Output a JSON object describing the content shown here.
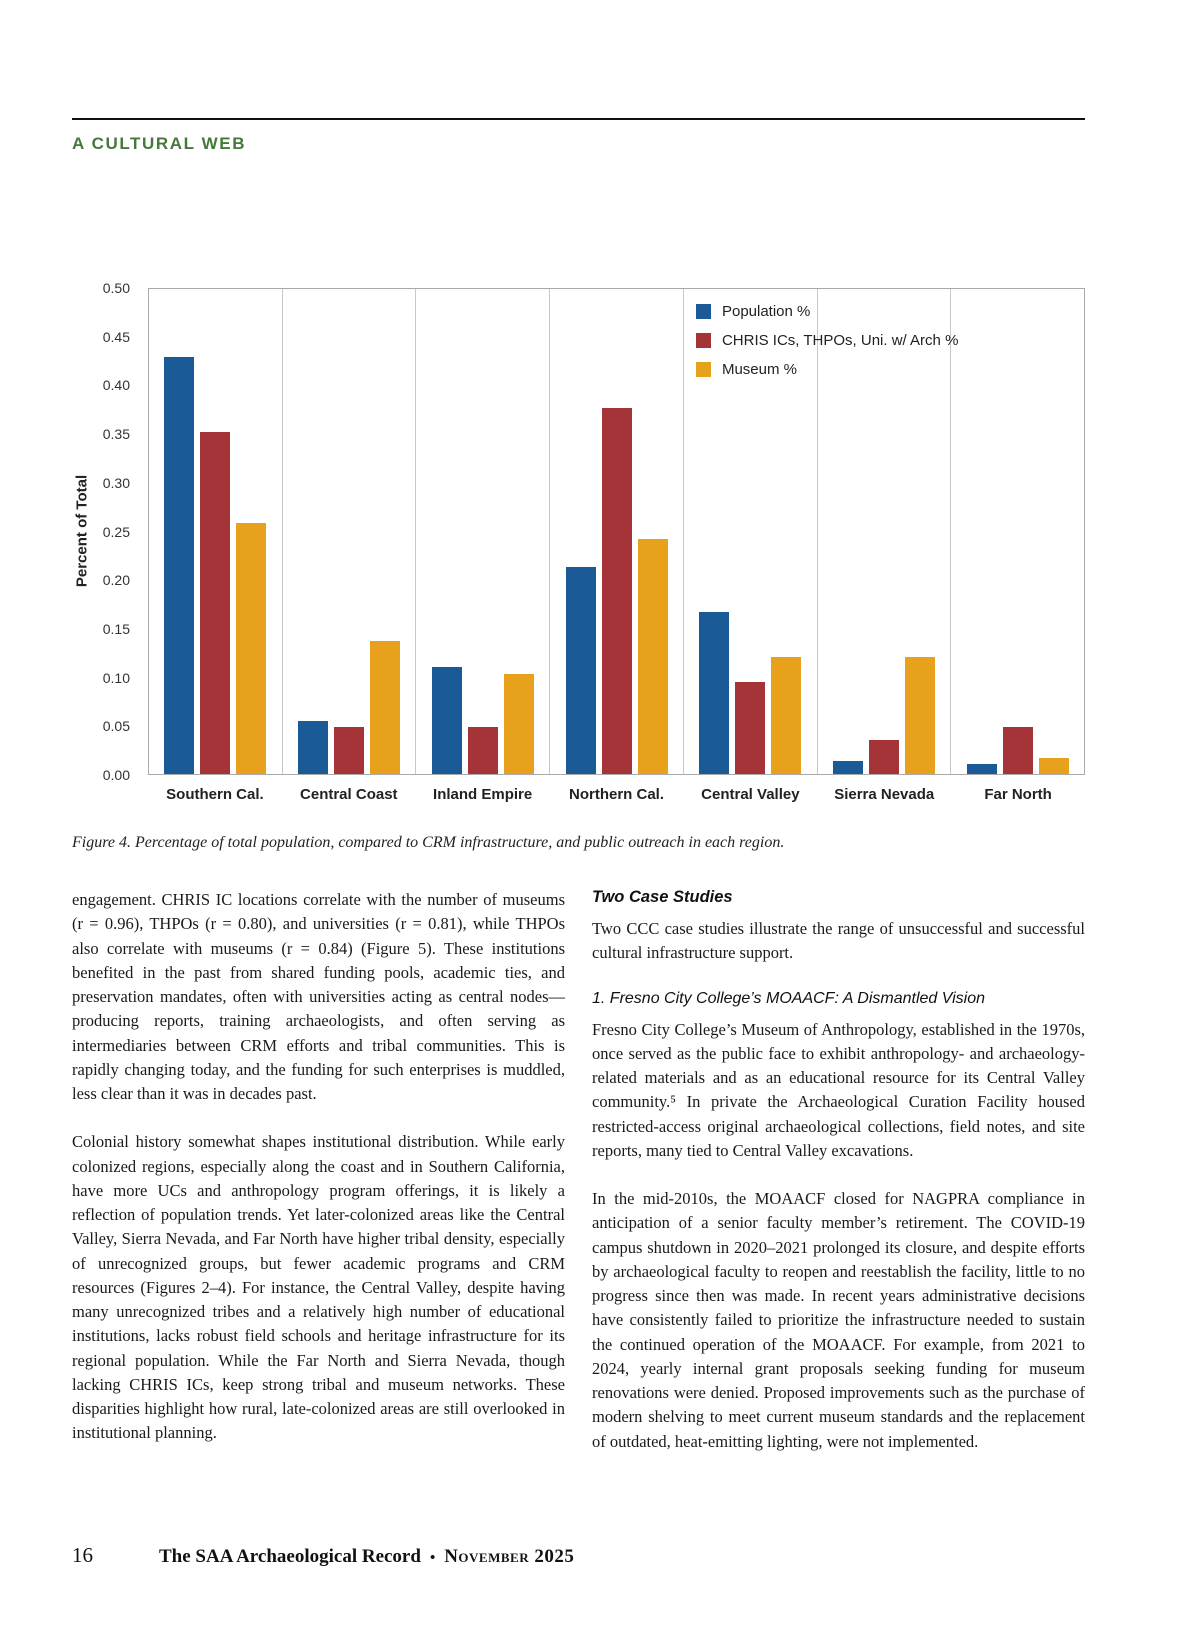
{
  "page": {
    "section_header": "A CULTURAL WEB",
    "colors": {
      "section_header": "#45793C",
      "body_text": "#1a1a1a"
    },
    "footer": {
      "page_number": "16",
      "journal": "The SAA Archaeological Record",
      "separator": "•",
      "issue": "November 2025"
    }
  },
  "figure": {
    "caption": "Figure 4. Percentage of total population, compared to CRM infrastructure, and public outreach in each region."
  },
  "chart_data": {
    "type": "bar",
    "title": "",
    "xlabel": "",
    "ylabel": "Percent of Total",
    "ylim": [
      0,
      0.5
    ],
    "ytick_step": 0.05,
    "grid": "vertical-separators",
    "legend_position": "top-right",
    "categories": [
      "Southern Cal.",
      "Central Coast",
      "Inland Empire",
      "Northern Cal.",
      "Central Valley",
      "Sierra Nevada",
      "Far North"
    ],
    "series": [
      {
        "name": "Population %",
        "color": "#1A5A96",
        "values": [
          0.43,
          0.055,
          0.11,
          0.213,
          0.167,
          0.013,
          0.01
        ]
      },
      {
        "name": "CHRIS ICs, THPOs, Uni. w/ Arch %",
        "color": "#A53438",
        "values": [
          0.353,
          0.048,
          0.048,
          0.377,
          0.095,
          0.035,
          0.048
        ]
      },
      {
        "name": "Museum %",
        "color": "#E8A11D",
        "values": [
          0.259,
          0.137,
          0.103,
          0.242,
          0.121,
          0.121,
          0.017
        ]
      }
    ]
  },
  "article": {
    "left": {
      "paragraphs": [
        "engagement. CHRIS IC locations correlate with the number of museums (r = 0.96), THPOs (r = 0.80), and universities (r = 0.81), while THPOs also correlate with museums (r = 0.84) (Figure 5). These institutions benefited in the past from shared funding pools, academic ties, and preservation mandates, often with universities acting as central nodes—producing reports, training archaeologists, and often serving as intermediaries between CRM efforts and tribal communities. This is rapidly changing today, and the funding for such enterprises is muddled, less clear than it was in decades past.",
        "Colonial history somewhat shapes institutional distribution. While early colonized regions, especially along the coast and in Southern California, have more UCs and anthropology program offerings, it is likely a reflection of population trends. Yet later-colonized areas like the Central Valley, Sierra Nevada, and Far North have higher tribal density, especially of unrecognized groups, but fewer academic programs and CRM resources (Figures 2–4). For instance, the Central Valley, despite having many unrecognized tribes and a relatively high number of educational institutions, lacks robust field schools and heritage infrastructure for its regional population. While the Far North and Sierra Nevada, though lacking CHRIS ICs, keep strong tribal and museum networks. These disparities highlight how rural, late-colonized areas are still overlooked in institutional planning."
      ]
    },
    "right": {
      "heading": "Two Case Studies",
      "intro": "Two CCC case studies illustrate the range of unsuccessful and successful cultural infrastructure support.",
      "case_heading": "1. Fresno City College’s MOAACF: A Dismantled Vision",
      "paragraphs": [
        "Fresno City College’s Museum of Anthropology, established in the 1970s, once served as the public face to exhibit anthropology- and archaeology-related materials and as an educational resource for its Central Valley community.⁵ In private the Archaeological Curation Facility housed restricted-access original archaeological collections, field notes, and site reports, many tied to Central Valley excavations.",
        "In the mid-2010s, the MOAACF closed for NAGPRA compliance in anticipation of a senior faculty member’s retirement. The COVID-19 campus shutdown in 2020–2021 prolonged its closure, and despite efforts by archaeological faculty to reopen and reestablish the facility, little to no progress since then was made. In recent years administrative decisions have consistently failed to prioritize the infrastructure needed to sustain the continued operation of the MOAACF. For example, from 2021 to 2024, yearly internal grant proposals seeking funding for museum renovations were denied. Proposed improvements such as the purchase of modern shelving to meet current museum standards and the replacement of outdated, heat-emitting lighting, were not implemented."
      ]
    }
  }
}
